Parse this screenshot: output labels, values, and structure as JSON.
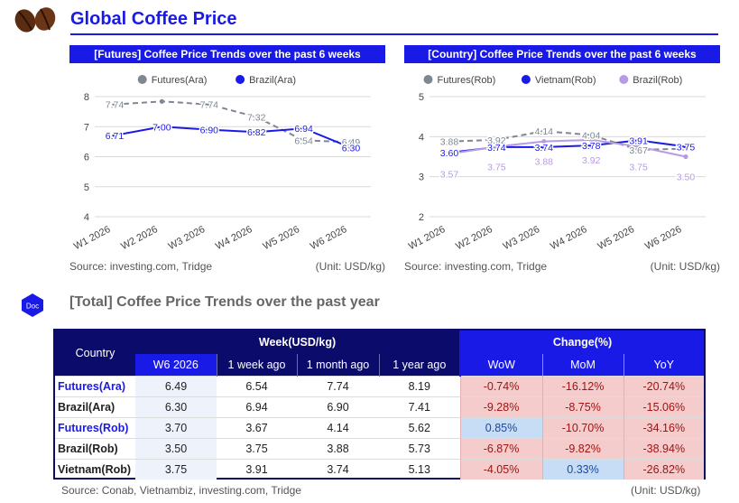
{
  "page": {
    "title": "Global Coffee Price",
    "accent": "#1a1ae6",
    "navy": "#0b0b6b"
  },
  "chart_data": [
    {
      "type": "line",
      "title": "[Futures] Coffee Price Trends over the past 6 weeks",
      "categories": [
        "W1 2026",
        "W2 2026",
        "W3 2026",
        "W4 2026",
        "W5 2026",
        "W6 2026"
      ],
      "series": [
        {
          "name": "Futures(Ara)",
          "values": [
            7.74,
            7.84,
            7.74,
            7.32,
            6.54,
            6.49
          ],
          "labels": [
            "7.74",
            "",
            "7.74",
            "7.32",
            "6.54",
            "6.49"
          ],
          "color": "#7f8793",
          "dashed": true
        },
        {
          "name": "Brazil(Ara)",
          "values": [
            6.71,
            7.0,
            6.9,
            6.82,
            6.94,
            6.3
          ],
          "labels": [
            "6.71",
            "7.00",
            "6.90",
            "6.82",
            "6.94",
            "6.30"
          ],
          "color": "#1a1ae6",
          "dashed": false
        }
      ],
      "yticks": [
        "8",
        "7",
        "6",
        "5",
        "4"
      ],
      "ylim": [
        4,
        8
      ],
      "source": "Source: investing.com, Tridge",
      "unit": "(Unit: USD/kg)"
    },
    {
      "type": "line",
      "title": "[Country] Coffee Price Trends over the past 6 weeks",
      "categories": [
        "W1 2026",
        "W2 2026",
        "W3 2026",
        "W4 2026",
        "W5 2026",
        "W6 2026"
      ],
      "series": [
        {
          "name": "Futures(Rob)",
          "values": [
            3.88,
            3.92,
            4.14,
            4.04,
            3.67,
            3.7
          ],
          "labels": [
            "3.88",
            "3.92",
            "4.14",
            "4.04",
            "3.67",
            ""
          ],
          "color": "#7f8793",
          "dashed": true
        },
        {
          "name": "Vietnam(Rob)",
          "values": [
            3.6,
            3.74,
            3.74,
            3.78,
            3.91,
            3.75
          ],
          "labels": [
            "3.60",
            "3.74",
            "3.74",
            "3.78",
            "3.91",
            "3.75"
          ],
          "color": "#1a1ae6",
          "dashed": false
        },
        {
          "name": "Brazil(Rob)",
          "values": [
            3.57,
            3.75,
            3.88,
            3.92,
            3.75,
            3.5
          ],
          "labels": [
            "3.57",
            "3.75",
            "3.88",
            "3.92",
            "3.75",
            "3.50"
          ],
          "color": "#b79be6",
          "dashed": false
        }
      ],
      "yticks": [
        "5",
        "4",
        "3",
        "2"
      ],
      "ylim": [
        2,
        5
      ],
      "source": "Source: investing.com, Tridge",
      "unit": "(Unit: USD/kg)"
    },
    {
      "type": "table",
      "title": "[Total] Coffee Price Trends over the past year",
      "group_headers": {
        "country": "Country",
        "week": "Week(USD/kg)",
        "change": "Change(%)"
      },
      "week_columns": [
        "W6 2026",
        "1 week ago",
        "1 month ago",
        "1 year ago"
      ],
      "change_columns": [
        "WoW",
        "MoM",
        "YoY"
      ],
      "rows": [
        {
          "country": "Futures(Ara)",
          "highlight": true,
          "week": [
            "6.49",
            "6.54",
            "7.74",
            "8.19"
          ],
          "change": [
            "-0.74%",
            "-16.12%",
            "-20.74%"
          ]
        },
        {
          "country": "Brazil(Ara)",
          "highlight": false,
          "week": [
            "6.30",
            "6.94",
            "6.90",
            "7.41"
          ],
          "change": [
            "-9.28%",
            "-8.75%",
            "-15.06%"
          ]
        },
        {
          "country": "Futures(Rob)",
          "highlight": true,
          "week": [
            "3.70",
            "3.67",
            "4.14",
            "5.62"
          ],
          "change": [
            "0.85%",
            "-10.70%",
            "-34.16%"
          ]
        },
        {
          "country": "Brazil(Rob)",
          "highlight": false,
          "week": [
            "3.50",
            "3.75",
            "3.88",
            "5.73"
          ],
          "change": [
            "-6.87%",
            "-9.82%",
            "-38.94%"
          ]
        },
        {
          "country": "Vietnam(Rob)",
          "highlight": false,
          "week": [
            "3.75",
            "3.91",
            "3.74",
            "5.13"
          ],
          "change": [
            "-4.05%",
            "0.33%",
            "-26.82%"
          ]
        }
      ],
      "source": "Source: Conab, Vietnambiz, investing.com, Tridge",
      "unit": "(Unit: USD/kg)"
    }
  ],
  "doc_badge": {
    "label": "Doc"
  },
  "icons": {
    "logo": "coffee-beans-icon",
    "badge": "doc-hexagon-icon"
  }
}
